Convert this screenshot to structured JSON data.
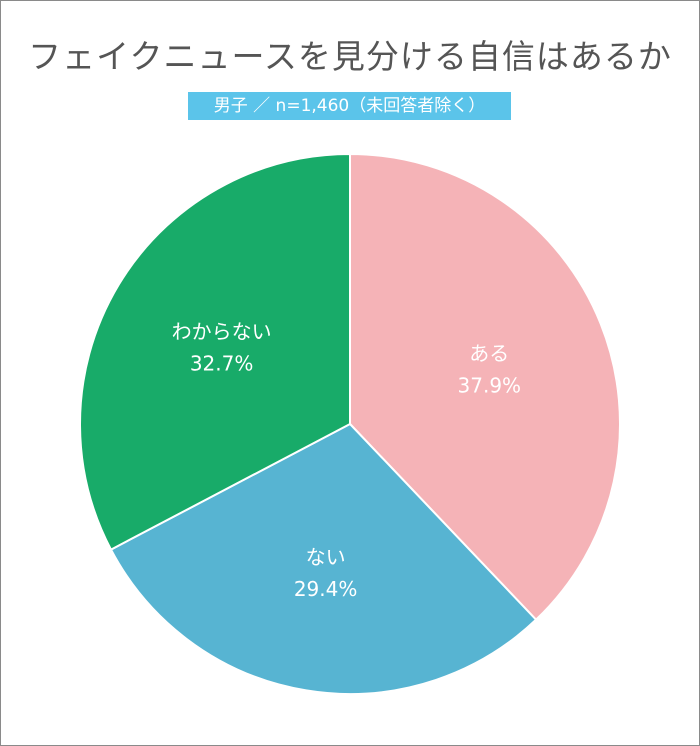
{
  "title": "フェイクニュースを見分ける自信はあるか",
  "subtitle": "男子 ／ n=1,460（未回答者除く）",
  "chart_data": {
    "type": "pie",
    "start_angle_deg": 0,
    "direction": "clockwise",
    "slices": [
      {
        "label": "ある",
        "value": 37.9,
        "value_label": "37.9%",
        "color": "#f5b3b7"
      },
      {
        "label": "ない",
        "value": 29.4,
        "value_label": "29.4%",
        "color": "#57b4d2"
      },
      {
        "label": "わからない",
        "value": 32.7,
        "value_label": "32.7%",
        "color": "#18ab69"
      }
    ]
  }
}
